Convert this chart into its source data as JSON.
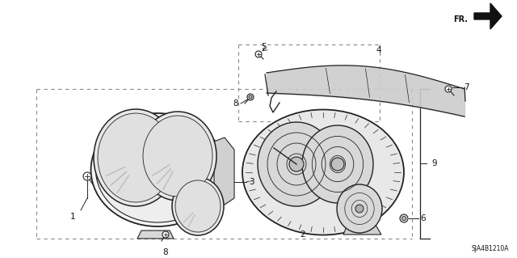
{
  "background_color": "#ffffff",
  "diagram_code": "SJA4B1210A",
  "fr_label": "FR.",
  "line_color": "#222222",
  "text_color": "#111111",
  "gray_fill": "#e0e0e0",
  "dark_gray": "#999999",
  "mid_gray": "#cccccc"
}
